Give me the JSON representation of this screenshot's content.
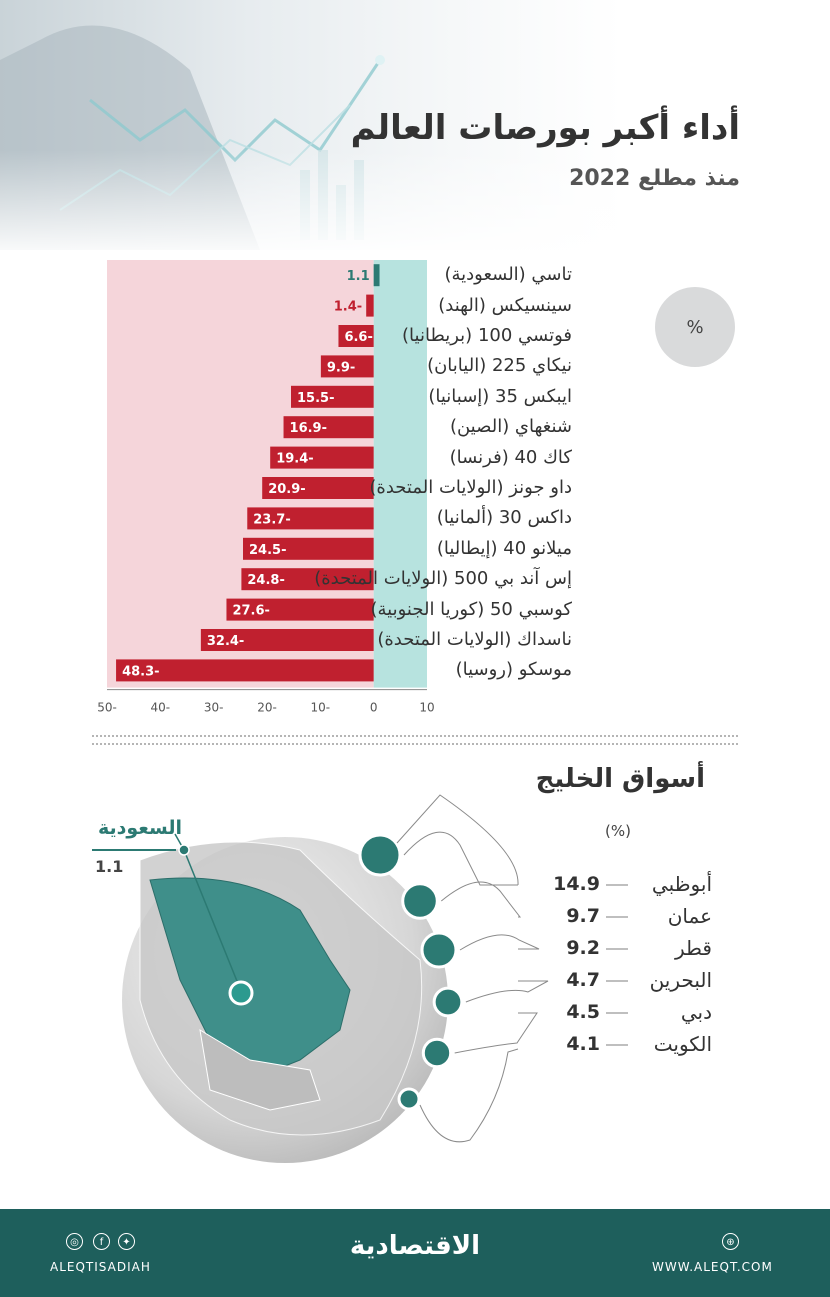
{
  "header": {
    "title": "أداء أكبر بورصات العالم",
    "subtitle": "منذ مطلع 2022"
  },
  "chart_data": [
    {
      "type": "bar",
      "orientation": "horizontal",
      "unit": "%",
      "categories": [
        "تاسي (السعودية)",
        "سينسيكس (الهند)",
        "فوتسي 100 (بريطانيا)",
        "نيكاي 225 (اليابان)",
        "ايبكس 35 (إسبانيا)",
        "شنغهاي (الصين)",
        "كاك 40 (فرنسا)",
        "داو جونز (الولايات المتحدة)",
        "داكس 30 (ألمانيا)",
        "ميلانو 40 (إيطاليا)",
        "إس آند بي 500 (الولايات المتحدة)",
        "كوسبي 50 (كوريا الجنوبية)",
        "ناسداك (الولايات المتحدة)",
        "موسكو (روسيا)"
      ],
      "values": [
        1.1,
        -1.4,
        -6.6,
        -9.9,
        -15.5,
        -16.9,
        -19.4,
        -20.9,
        -23.7,
        -24.5,
        -24.8,
        -27.6,
        -32.4,
        -48.3
      ],
      "value_labels": [
        "1.1",
        "1.4-",
        "6.6-",
        "9.9-",
        "15.5-",
        "16.9-",
        "19.4-",
        "20.9-",
        "23.7-",
        "24.5-",
        "24.8-",
        "27.6-",
        "32.4-",
        "48.3-"
      ],
      "xlim": [
        -50,
        10
      ],
      "x_ticks": [
        -50,
        -40,
        -30,
        -20,
        -10,
        0,
        10
      ],
      "x_tick_labels": [
        "50-",
        "40-",
        "30-",
        "20-",
        "10-",
        "0",
        "10"
      ],
      "grid": false,
      "colors": {
        "negative_bar": "#c0202f",
        "positive_bar": "#2c7a73",
        "negative_region": "#f5d5da",
        "positive_region": "#b7e3df"
      }
    },
    {
      "type": "table",
      "title": "أسواق الخليج",
      "unit": "(%)",
      "categories": [
        "أبوظبي",
        "عمان",
        "قطر",
        "البحرين",
        "دبي",
        "الكويت"
      ],
      "values": [
        14.9,
        9.7,
        9.2,
        4.7,
        4.5,
        4.1
      ],
      "highlight": {
        "name": "السعودية",
        "value": 1.1
      }
    }
  ],
  "percent_badge": "%",
  "footer": {
    "brand": "الاقتصادية",
    "handle": "ALEQTISADIAH",
    "website": "WWW.ALEQT.COM",
    "social_icons": [
      "instagram-icon",
      "facebook-icon",
      "twitter-icon"
    ],
    "background": "#1e5f5c"
  }
}
